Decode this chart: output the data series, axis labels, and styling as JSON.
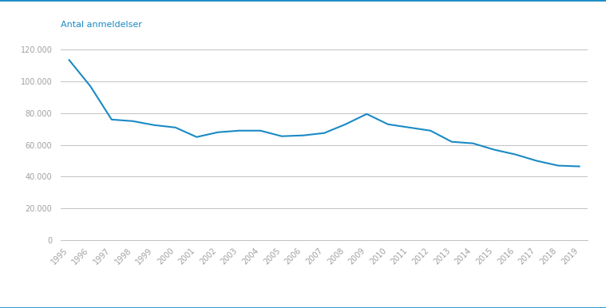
{
  "years": [
    1995,
    1996,
    1997,
    1998,
    1999,
    2000,
    2001,
    2002,
    2003,
    2004,
    2005,
    2006,
    2007,
    2008,
    2009,
    2010,
    2011,
    2012,
    2013,
    2014,
    2015,
    2016,
    2017,
    2018,
    2019
  ],
  "values": [
    113500,
    97000,
    76000,
    75000,
    72500,
    71000,
    65000,
    68000,
    69000,
    69000,
    65500,
    66000,
    67500,
    73000,
    79500,
    73000,
    71000,
    69000,
    62000,
    61000,
    57000,
    54000,
    50000,
    47000,
    46500
  ],
  "line_color": "#1a8ac4",
  "line_width": 1.5,
  "ylabel": "Antal anmeldelser",
  "ylabel_color": "#1a8ac4",
  "ylabel_fontsize": 8,
  "ylim": [
    0,
    128000
  ],
  "yticks": [
    0,
    20000,
    40000,
    60000,
    80000,
    100000,
    120000
  ],
  "ytick_labels": [
    "0",
    "20.000",
    "40.000",
    "60.000",
    "80.000",
    "100.000",
    "120.000"
  ],
  "grid_color": "#b8b8b8",
  "grid_linewidth": 0.6,
  "background_color": "#ffffff",
  "tick_label_color": "#a0a0a0",
  "tick_fontsize": 7,
  "figure_bg": "#ffffff",
  "border_color": "#1a8ac4",
  "border_linewidth": 2.0
}
